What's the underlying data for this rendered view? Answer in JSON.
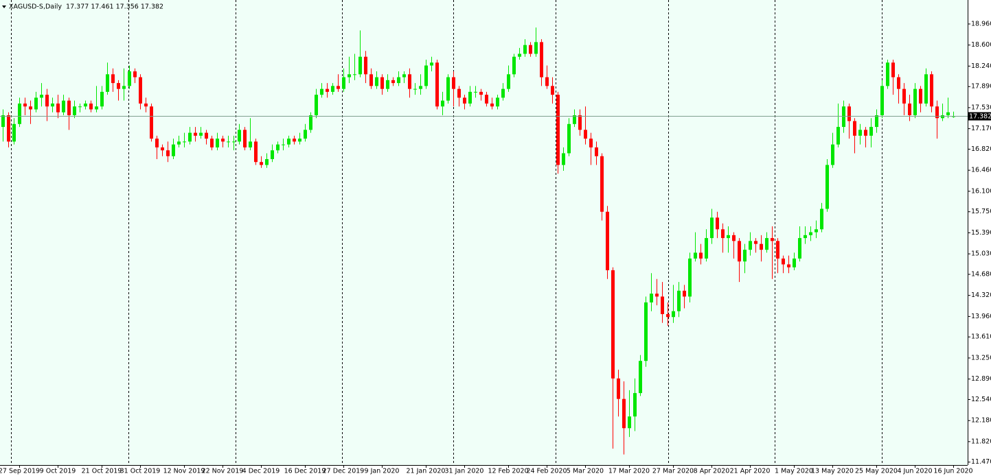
{
  "chart_data": {
    "type": "candlestick",
    "title": "XAGUSD-S,Daily  17.377 17.461 17.356 17.382",
    "categories": [
      null,
      null,
      null,
      "27 Sep 2019",
      null,
      null,
      null,
      null,
      null,
      null,
      "9 Oct 2019",
      null,
      null,
      null,
      null,
      null,
      null,
      null,
      "21 Oct 2019",
      null,
      null,
      null,
      null,
      null,
      null,
      "31 Oct 2019",
      null,
      null,
      null,
      null,
      null,
      null,
      null,
      "12 Nov 2019",
      null,
      null,
      null,
      null,
      null,
      null,
      "22 Nov 2019",
      null,
      null,
      null,
      null,
      null,
      null,
      "4 Dec 2019",
      null,
      null,
      null,
      null,
      null,
      null,
      null,
      "16 Dec 2019",
      null,
      null,
      null,
      null,
      null,
      null,
      "27 Dec 2019",
      null,
      null,
      null,
      null,
      null,
      null,
      "9 Jan 2020",
      null,
      null,
      null,
      null,
      null,
      null,
      null,
      "21 Jan 2020",
      null,
      null,
      null,
      null,
      null,
      null,
      "31 Jan 2020",
      null,
      null,
      null,
      null,
      null,
      null,
      null,
      "12 Feb 2020",
      null,
      null,
      null,
      null,
      null,
      null,
      "24 Feb 2020",
      null,
      null,
      null,
      null,
      null,
      null,
      "5 Mar 2020",
      null,
      null,
      null,
      null,
      null,
      null,
      null,
      "17 Mar 2020",
      null,
      null,
      null,
      null,
      null,
      null,
      null,
      "27 Mar 2020",
      null,
      null,
      null,
      null,
      null,
      null,
      "8 Apr 2020",
      null,
      null,
      null,
      null,
      null,
      null,
      "21 Apr 2020",
      null,
      null,
      null,
      null,
      null,
      null,
      null,
      "1 May 2020",
      null,
      null,
      null,
      null,
      null,
      null,
      "13 May 2020",
      null,
      null,
      null,
      null,
      null,
      null,
      null,
      "25 May 2020",
      null,
      null,
      null,
      null,
      null,
      null,
      "4 Jun 2020",
      null,
      null,
      null,
      null,
      null,
      null,
      "16 Jun 2020"
    ],
    "open": [
      17.2,
      17.4,
      16.95,
      17.25,
      17.6,
      17.55,
      17.5,
      17.7,
      17.75,
      17.55,
      17.6,
      17.45,
      17.65,
      17.4,
      17.55,
      17.55,
      17.6,
      17.5,
      17.55,
      17.8,
      18.1,
      17.95,
      17.85,
      17.9,
      18.15,
      18.05,
      17.6,
      17.55,
      17.0,
      16.85,
      16.8,
      16.7,
      16.9,
      16.95,
      16.95,
      17.1,
      17.05,
      17.1,
      17.0,
      16.85,
      17.0,
      16.95,
      16.95,
      16.95,
      17.15,
      16.85,
      16.95,
      16.6,
      16.55,
      16.65,
      16.8,
      16.9,
      16.9,
      17.0,
      16.95,
      17.0,
      17.15,
      17.4,
      17.75,
      17.85,
      17.8,
      17.9,
      17.85,
      18.05,
      18.1,
      18.1,
      18.4,
      18.1,
      17.9,
      18.05,
      17.85,
      18.0,
      17.95,
      18.05,
      18.1,
      17.85,
      17.85,
      17.9,
      18.25,
      18.3,
      17.55,
      17.65,
      18.05,
      17.85,
      17.7,
      17.6,
      17.8,
      17.8,
      17.75,
      17.6,
      17.55,
      17.7,
      17.85,
      18.1,
      18.4,
      18.45,
      18.6,
      18.45,
      18.65,
      18.05,
      17.9,
      17.75,
      16.55,
      16.75,
      17.25,
      17.4,
      17.15,
      17.0,
      16.85,
      16.7,
      15.75,
      14.75,
      12.9,
      12.55,
      12.05,
      12.25,
      12.65,
      13.2,
      14.2,
      14.35,
      14.3,
      14.0,
      13.95,
      14.05,
      14.4,
      14.3,
      14.95,
      15.05,
      14.95,
      15.3,
      15.65,
      15.45,
      15.3,
      15.35,
      15.25,
      14.9,
      15.1,
      15.25,
      15.2,
      15.1,
      15.3,
      15.25,
      14.95,
      14.85,
      14.8,
      14.95,
      15.3,
      15.35,
      15.4,
      15.45,
      15.8,
      16.55,
      16.9,
      17.2,
      17.55,
      17.3,
      17.05,
      17.15,
      17.05,
      17.2,
      17.4,
      17.9,
      18.3,
      18.05,
      17.85,
      17.6,
      17.4,
      17.85,
      17.6,
      18.1,
      17.55,
      17.35,
      17.4,
      17.377
    ],
    "high": [
      17.5,
      17.45,
      17.35,
      17.7,
      17.7,
      17.65,
      17.8,
      17.95,
      17.85,
      17.7,
      17.75,
      17.75,
      17.7,
      17.65,
      17.6,
      17.65,
      17.65,
      17.9,
      17.9,
      18.3,
      18.2,
      18.0,
      18.2,
      18.25,
      18.2,
      18.1,
      17.7,
      17.6,
      17.05,
      16.9,
      16.95,
      17.0,
      17.05,
      17.1,
      17.2,
      17.2,
      17.2,
      17.15,
      17.05,
      17.1,
      17.05,
      17.05,
      17.05,
      17.25,
      17.2,
      17.35,
      17.0,
      16.7,
      16.75,
      16.9,
      16.95,
      17.0,
      17.05,
      17.05,
      17.1,
      17.25,
      17.45,
      17.85,
      17.95,
      17.95,
      17.95,
      18.1,
      18.2,
      18.4,
      18.45,
      18.85,
      18.5,
      18.2,
      18.15,
      18.1,
      18.1,
      18.05,
      18.15,
      18.15,
      18.2,
      17.95,
      18.1,
      18.35,
      18.4,
      18.35,
      17.8,
      18.1,
      18.15,
      17.9,
      17.75,
      17.9,
      17.9,
      17.85,
      17.8,
      17.7,
      17.75,
      17.95,
      18.25,
      18.45,
      18.55,
      18.7,
      18.65,
      18.9,
      18.7,
      18.25,
      18.05,
      17.8,
      16.85,
      17.35,
      17.5,
      17.5,
      17.55,
      17.1,
      16.95,
      16.75,
      15.85,
      14.8,
      13.05,
      12.85,
      12.7,
      12.9,
      13.3,
      14.3,
      14.7,
      14.6,
      14.55,
      14.2,
      14.5,
      14.55,
      14.5,
      15.05,
      15.4,
      15.2,
      15.45,
      15.8,
      15.75,
      15.55,
      15.5,
      15.4,
      15.3,
      15.2,
      15.4,
      15.3,
      15.35,
      15.4,
      15.5,
      15.3,
      15.0,
      15.0,
      15.05,
      15.5,
      15.5,
      15.5,
      15.6,
      15.9,
      16.65,
      17.1,
      17.6,
      17.65,
      17.6,
      17.35,
      17.25,
      17.2,
      17.35,
      17.5,
      18.0,
      18.35,
      18.35,
      18.1,
      17.95,
      17.75,
      17.95,
      17.9,
      18.2,
      18.15,
      17.65,
      17.6,
      17.7,
      17.461
    ],
    "low": [
      16.95,
      16.85,
      16.9,
      17.2,
      17.4,
      17.25,
      17.45,
      17.55,
      17.3,
      17.45,
      17.35,
      17.4,
      17.15,
      17.35,
      17.45,
      17.5,
      17.45,
      17.45,
      17.5,
      17.75,
      17.8,
      17.65,
      17.65,
      17.85,
      17.95,
      17.5,
      17.45,
      16.95,
      16.65,
      16.7,
      16.6,
      16.65,
      16.85,
      16.85,
      16.9,
      16.95,
      17.0,
      16.9,
      16.8,
      16.8,
      16.85,
      16.85,
      16.8,
      16.9,
      16.8,
      16.8,
      16.55,
      16.5,
      16.5,
      16.6,
      16.75,
      16.8,
      16.85,
      16.9,
      16.9,
      16.95,
      17.1,
      17.35,
      17.7,
      17.7,
      17.75,
      17.8,
      17.8,
      17.95,
      18.0,
      18.05,
      17.95,
      17.85,
      17.85,
      17.75,
      17.8,
      17.9,
      17.9,
      17.95,
      17.7,
      17.75,
      17.75,
      17.85,
      18.15,
      17.5,
      17.4,
      17.6,
      17.55,
      17.55,
      17.5,
      17.55,
      17.7,
      17.65,
      17.55,
      17.5,
      17.5,
      17.65,
      17.8,
      18.05,
      18.35,
      18.4,
      18.4,
      18.4,
      17.9,
      17.85,
      17.6,
      16.4,
      16.45,
      16.7,
      17.2,
      17.05,
      16.9,
      16.55,
      16.55,
      15.6,
      14.6,
      11.7,
      12.25,
      11.6,
      11.9,
      12.0,
      12.6,
      13.1,
      14.05,
      14.15,
      13.85,
      13.8,
      13.85,
      13.95,
      14.1,
      14.2,
      14.9,
      14.85,
      14.9,
      15.2,
      15.3,
      15.05,
      15.05,
      14.95,
      14.55,
      14.7,
      15.0,
      15.05,
      14.9,
      15.05,
      14.6,
      14.7,
      14.7,
      14.7,
      14.75,
      14.9,
      15.2,
      15.25,
      15.3,
      15.4,
      15.75,
      16.5,
      16.85,
      17.1,
      17.0,
      16.75,
      16.9,
      16.85,
      16.85,
      17.1,
      17.35,
      17.85,
      17.75,
      17.6,
      17.4,
      17.3,
      17.35,
      17.45,
      17.55,
      17.45,
      17.0,
      17.3,
      17.35,
      17.356
    ],
    "close": [
      17.4,
      16.95,
      17.25,
      17.6,
      17.55,
      17.5,
      17.7,
      17.75,
      17.55,
      17.6,
      17.45,
      17.65,
      17.4,
      17.55,
      17.55,
      17.6,
      17.5,
      17.55,
      17.8,
      18.1,
      17.95,
      17.85,
      17.9,
      18.15,
      18.05,
      17.6,
      17.55,
      17.0,
      16.85,
      16.8,
      16.7,
      16.9,
      16.95,
      16.95,
      17.1,
      17.05,
      17.1,
      17.0,
      16.85,
      17.0,
      16.95,
      16.95,
      16.95,
      17.15,
      16.85,
      16.95,
      16.6,
      16.55,
      16.65,
      16.8,
      16.9,
      16.9,
      17.0,
      16.95,
      17.0,
      17.15,
      17.4,
      17.75,
      17.85,
      17.8,
      17.9,
      17.85,
      18.05,
      18.1,
      18.1,
      18.4,
      18.1,
      17.9,
      18.05,
      17.85,
      18.0,
      17.95,
      18.05,
      18.1,
      17.85,
      17.85,
      17.9,
      18.25,
      18.3,
      17.55,
      17.65,
      18.05,
      17.85,
      17.7,
      17.6,
      17.8,
      17.8,
      17.75,
      17.6,
      17.55,
      17.7,
      17.85,
      18.1,
      18.4,
      18.45,
      18.6,
      18.45,
      18.65,
      18.05,
      17.9,
      17.75,
      16.55,
      16.75,
      17.25,
      17.4,
      17.15,
      17.0,
      16.85,
      16.7,
      15.75,
      14.75,
      12.9,
      12.55,
      12.05,
      12.25,
      12.65,
      13.2,
      14.2,
      14.35,
      14.3,
      14.0,
      13.95,
      14.05,
      14.4,
      14.3,
      14.95,
      15.05,
      14.95,
      15.3,
      15.65,
      15.45,
      15.3,
      15.35,
      15.25,
      14.9,
      15.1,
      15.25,
      15.2,
      15.1,
      15.3,
      15.25,
      14.95,
      14.85,
      14.8,
      14.95,
      15.3,
      15.35,
      15.4,
      15.45,
      15.8,
      16.55,
      16.9,
      17.2,
      17.55,
      17.3,
      17.05,
      17.15,
      17.05,
      17.2,
      17.4,
      17.9,
      18.3,
      18.05,
      17.85,
      17.6,
      17.4,
      17.85,
      17.6,
      18.1,
      17.55,
      17.35,
      17.4,
      17.45,
      17.382
    ],
    "up_color": "#00e600",
    "down_color": "#ff0000",
    "current_price": 17.382,
    "ylim": [
      11.42,
      19.37
    ],
    "yticks": [
      {
        "value": 18.96,
        "label": "18.960"
      },
      {
        "value": 18.6,
        "label": "18.600"
      },
      {
        "value": 18.24,
        "label": "18.240"
      },
      {
        "value": 17.89,
        "label": "17.890"
      },
      {
        "value": 17.53,
        "label": "17.530"
      },
      {
        "value": 17.17,
        "label": "17.170"
      },
      {
        "value": 16.82,
        "label": "16.820"
      },
      {
        "value": 16.46,
        "label": "16.460"
      },
      {
        "value": 16.1,
        "label": "16.100"
      },
      {
        "value": 15.75,
        "label": "15.750"
      },
      {
        "value": 15.39,
        "label": "15.390"
      },
      {
        "value": 15.03,
        "label": "15.030"
      },
      {
        "value": 14.68,
        "label": "14.680"
      },
      {
        "value": 14.32,
        "label": "14.320"
      },
      {
        "value": 13.96,
        "label": "13.960"
      },
      {
        "value": 13.61,
        "label": "13.610"
      },
      {
        "value": 13.25,
        "label": "13.250"
      },
      {
        "value": 12.89,
        "label": "12.890"
      },
      {
        "value": 12.54,
        "label": "12.540"
      },
      {
        "value": 12.18,
        "label": "12.180"
      },
      {
        "value": 11.82,
        "label": "11.820"
      },
      {
        "value": 11.47,
        "label": "11.470"
      }
    ]
  }
}
